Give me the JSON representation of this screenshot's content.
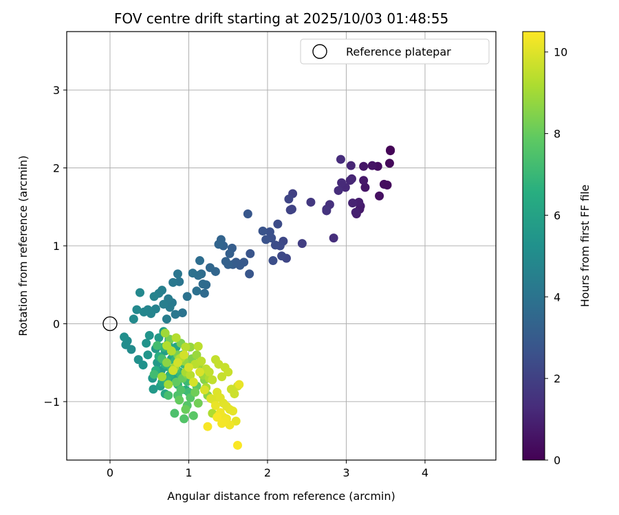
{
  "chart_data": {
    "type": "scatter",
    "title": "FOV centre drift starting at 2025/10/03 01:48:55",
    "xlabel": "Angular distance from reference (arcmin)",
    "ylabel": "Rotation from reference (arcmin)",
    "colorbar_label": "Hours from first FF file",
    "xlim": [
      -0.55,
      4.9
    ],
    "ylim": [
      -1.75,
      3.75
    ],
    "clim": [
      0,
      10.5
    ],
    "x_ticks": [
      0,
      1,
      2,
      3,
      4
    ],
    "y_ticks": [
      -1,
      0,
      1,
      2,
      3
    ],
    "colorbar_ticks": [
      0,
      2,
      4,
      6,
      8,
      10
    ],
    "x_tick_labels": [
      "0",
      "1",
      "2",
      "3",
      "4"
    ],
    "y_tick_labels": [
      "−1",
      "0",
      "1",
      "2",
      "3"
    ],
    "colorbar_tick_labels": [
      "0",
      "2",
      "4",
      "6",
      "8",
      "10"
    ],
    "colormap": "viridis",
    "grid": true,
    "legend": {
      "position": "top-right",
      "label": "Reference platepar"
    },
    "reference_point": {
      "x": 0,
      "y": 0
    },
    "series": [
      {
        "x": [
          3.56,
          3.56,
          3.55,
          3.52,
          3.48,
          3.4,
          3.42,
          3.33,
          3.24,
          3.22,
          3.22,
          3.17,
          3.18,
          3.13,
          3.16,
          3.12,
          3.08,
          3.07,
          3.06,
          3.05,
          2.99,
          2.94,
          2.93,
          2.9,
          2.84,
          2.79,
          2.75,
          2.75,
          2.55
        ],
        "y": [
          2.23,
          2.22,
          2.06,
          1.78,
          1.79,
          2.02,
          1.64,
          2.03,
          1.75,
          2.02,
          1.84,
          1.47,
          1.51,
          1.41,
          1.56,
          1.43,
          1.55,
          1.86,
          2.03,
          1.84,
          1.75,
          1.81,
          2.11,
          1.71,
          1.1,
          1.53,
          1.47,
          1.45,
          1.56
        ],
        "t": [
          0.05,
          0.1,
          0.2,
          0.3,
          0.35,
          0.4,
          0.45,
          0.55,
          0.6,
          0.65,
          0.7,
          0.75,
          0.8,
          0.85,
          0.9,
          0.95,
          1.0,
          1.05,
          1.1,
          1.15,
          1.2,
          1.25,
          1.3,
          1.35,
          1.4,
          1.45,
          1.5,
          1.55,
          1.7
        ]
      },
      {
        "x": [
          2.44,
          2.32,
          2.31,
          2.29,
          2.27,
          2.24,
          2.2,
          2.18,
          2.16,
          2.13,
          2.1,
          2.07,
          2.05,
          2.03,
          1.98,
          1.94,
          1.78,
          1.77,
          1.75,
          1.7,
          1.65,
          1.6,
          1.56,
          1.55,
          1.52,
          1.5,
          1.47,
          1.44,
          1.41
        ],
        "y": [
          1.03,
          1.67,
          1.47,
          1.46,
          1.6,
          0.84,
          1.06,
          0.87,
          1.0,
          1.28,
          1.01,
          0.81,
          1.1,
          1.18,
          1.08,
          1.19,
          0.9,
          0.64,
          1.41,
          0.79,
          0.75,
          0.79,
          0.76,
          0.97,
          0.9,
          0.76,
          0.8,
          1.0,
          1.08
        ],
        "t": [
          1.9,
          2.0,
          2.05,
          2.1,
          2.15,
          2.2,
          2.25,
          2.3,
          2.35,
          2.4,
          2.45,
          2.5,
          2.55,
          2.6,
          2.65,
          2.7,
          2.75,
          2.8,
          2.85,
          2.9,
          2.95,
          3.0,
          3.05,
          3.1,
          3.15,
          3.2,
          3.25,
          3.3,
          3.35
        ]
      },
      {
        "x": [
          1.38,
          1.34,
          1.27,
          1.22,
          1.2,
          1.18,
          1.16,
          1.14,
          1.12,
          1.1,
          1.05,
          0.98,
          0.92,
          0.88,
          0.86,
          0.83,
          0.8,
          0.79,
          0.76,
          0.74,
          0.72,
          0.68,
          0.66,
          0.62,
          0.58,
          0.56,
          0.52,
          0.48,
          0.43,
          0.38,
          0.34,
          0.3,
          0.27,
          0.22,
          0.2,
          0.18
        ],
        "y": [
          1.02,
          0.67,
          0.72,
          0.5,
          0.39,
          0.51,
          0.64,
          0.81,
          0.62,
          0.42,
          0.65,
          0.35,
          0.14,
          0.54,
          0.64,
          0.12,
          0.53,
          0.27,
          0.21,
          0.32,
          0.06,
          0.25,
          0.43,
          0.39,
          0.19,
          0.35,
          0.13,
          0.18,
          0.15,
          0.4,
          0.18,
          0.06,
          -0.33,
          -0.22,
          -0.27,
          -0.17
        ],
        "t": [
          3.4,
          3.45,
          3.5,
          3.55,
          3.6,
          3.65,
          3.7,
          3.75,
          3.8,
          3.85,
          3.9,
          3.95,
          4.0,
          4.05,
          4.1,
          4.15,
          4.2,
          4.25,
          4.3,
          4.35,
          4.4,
          4.45,
          4.5,
          4.55,
          4.6,
          4.65,
          4.7,
          4.75,
          4.8,
          4.85,
          4.9,
          4.95,
          5.0,
          5.05,
          5.1,
          5.15
        ]
      },
      {
        "x": [
          0.36,
          0.42,
          0.46,
          0.5,
          0.48,
          0.54,
          0.58,
          0.55,
          0.6,
          0.62,
          0.65,
          0.68,
          0.7,
          0.64,
          0.72,
          0.75,
          0.78,
          0.8,
          0.84,
          0.7,
          0.74,
          0.66,
          0.88,
          0.92,
          0.96,
          0.62,
          0.58,
          0.7,
          0.76,
          0.8,
          0.86,
          0.68,
          0.72,
          0.78,
          0.82,
          0.9,
          0.94,
          0.98,
          1.0,
          0.56,
          0.6,
          0.66,
          0.74,
          0.84
        ],
        "y": [
          -0.46,
          -0.53,
          -0.25,
          -0.15,
          -0.4,
          -0.7,
          -0.32,
          -0.84,
          -0.5,
          -0.18,
          -0.6,
          -0.1,
          -0.35,
          -0.8,
          -0.55,
          -0.2,
          -0.45,
          -0.7,
          -0.3,
          -0.9,
          -0.25,
          -0.75,
          -0.62,
          -0.4,
          -0.85,
          -0.42,
          -0.6,
          -0.52,
          -0.66,
          -0.38,
          -0.78,
          -0.3,
          -0.72,
          -0.58,
          -0.48,
          -0.66,
          -0.52,
          -0.74,
          -0.88,
          -0.65,
          -0.28,
          -0.45,
          -0.92,
          -0.58
        ],
        "t": [
          5.2,
          5.3,
          5.35,
          5.4,
          5.45,
          5.5,
          5.55,
          5.6,
          5.65,
          5.7,
          5.75,
          5.8,
          5.85,
          5.9,
          5.95,
          6.0,
          6.05,
          6.1,
          6.15,
          6.2,
          6.25,
          6.3,
          6.35,
          6.4,
          6.45,
          6.5,
          6.55,
          6.6,
          6.65,
          6.7,
          6.75,
          6.8,
          6.85,
          6.9,
          6.95,
          7.0,
          7.05,
          7.1,
          7.15,
          7.2,
          7.25,
          7.3,
          7.35,
          7.4
        ]
      },
      {
        "x": [
          0.82,
          0.86,
          0.9,
          0.94,
          0.98,
          1.02,
          1.06,
          1.1,
          0.8,
          0.84,
          0.88,
          0.92,
          0.96,
          1.0,
          1.08,
          1.12,
          0.76,
          0.86,
          0.9,
          0.98,
          1.04,
          1.16,
          1.2,
          1.24,
          0.72,
          0.78,
          0.94,
          1.02,
          1.1,
          1.18,
          0.7,
          0.66,
          0.74,
          0.82,
          0.88,
          0.96,
          1.14,
          1.22,
          1.26,
          1.3
        ],
        "y": [
          -1.15,
          -0.92,
          -0.85,
          -1.22,
          -1.05,
          -0.95,
          -1.18,
          -0.8,
          -0.6,
          -0.75,
          -0.98,
          -0.7,
          -1.1,
          -0.55,
          -0.88,
          -1.02,
          -0.2,
          -0.4,
          -0.25,
          -0.65,
          -0.45,
          -0.6,
          -0.72,
          -0.92,
          -0.5,
          -0.35,
          -0.48,
          -0.3,
          -0.4,
          -0.66,
          -0.12,
          -0.68,
          -0.78,
          -0.56,
          -0.45,
          -0.62,
          -0.5,
          -0.82,
          -0.7,
          -1.15
        ],
        "t": [
          7.45,
          7.5,
          7.55,
          7.6,
          7.65,
          7.7,
          7.75,
          7.8,
          7.85,
          7.9,
          7.95,
          8.0,
          8.05,
          8.1,
          8.15,
          8.2,
          8.25,
          8.3,
          8.35,
          8.4,
          8.45,
          8.5,
          8.55,
          8.6,
          8.65,
          8.7,
          8.75,
          8.8,
          8.85,
          8.9,
          8.95,
          9.0,
          9.02,
          9.05,
          9.08,
          9.1,
          9.12,
          9.15,
          9.18,
          9.2
        ]
      },
      {
        "x": [
          0.72,
          0.78,
          0.84,
          0.9,
          0.96,
          1.02,
          1.08,
          1.12,
          1.16,
          1.22,
          1.26,
          1.3,
          1.34,
          1.38,
          1.42,
          1.46,
          1.5,
          1.54,
          1.58,
          1.62,
          0.8,
          0.86,
          0.94,
          1.0,
          1.06,
          1.14,
          1.2,
          1.28,
          1.32,
          1.36,
          1.4,
          1.44,
          1.48,
          1.52,
          1.56,
          1.6,
          1.64,
          1.34,
          1.38,
          1.44,
          1.48,
          1.52,
          1.4,
          1.46,
          1.42,
          1.36,
          1.24,
          1.62
        ],
        "y": [
          -0.28,
          -0.35,
          -0.18,
          -0.44,
          -0.3,
          -0.66,
          -0.52,
          -0.29,
          -0.48,
          -0.58,
          -0.62,
          -0.72,
          -0.46,
          -0.52,
          -0.68,
          -0.56,
          -0.62,
          -0.84,
          -0.9,
          -0.8,
          -0.6,
          -0.5,
          -0.4,
          -0.56,
          -0.75,
          -0.62,
          -0.85,
          -0.96,
          -0.98,
          -0.88,
          -0.95,
          -1.02,
          -1.06,
          -1.1,
          -1.12,
          -1.25,
          -0.78,
          -1.05,
          -1.18,
          -1.2,
          -1.22,
          -1.3,
          -1.14,
          -1.25,
          -1.28,
          -1.2,
          -1.32,
          -1.56
        ],
        "t": [
          9.25,
          9.28,
          9.3,
          9.32,
          9.35,
          9.38,
          9.4,
          9.42,
          9.45,
          9.48,
          9.5,
          9.52,
          9.55,
          9.58,
          9.6,
          9.62,
          9.65,
          9.68,
          9.7,
          9.72,
          9.75,
          9.78,
          9.8,
          9.82,
          9.85,
          9.88,
          9.9,
          9.92,
          9.95,
          9.98,
          10.0,
          10.02,
          10.05,
          10.08,
          10.1,
          10.12,
          10.15,
          10.18,
          10.2,
          10.22,
          10.25,
          10.28,
          10.3,
          10.32,
          10.35,
          10.38,
          10.4,
          10.45
        ]
      }
    ]
  }
}
